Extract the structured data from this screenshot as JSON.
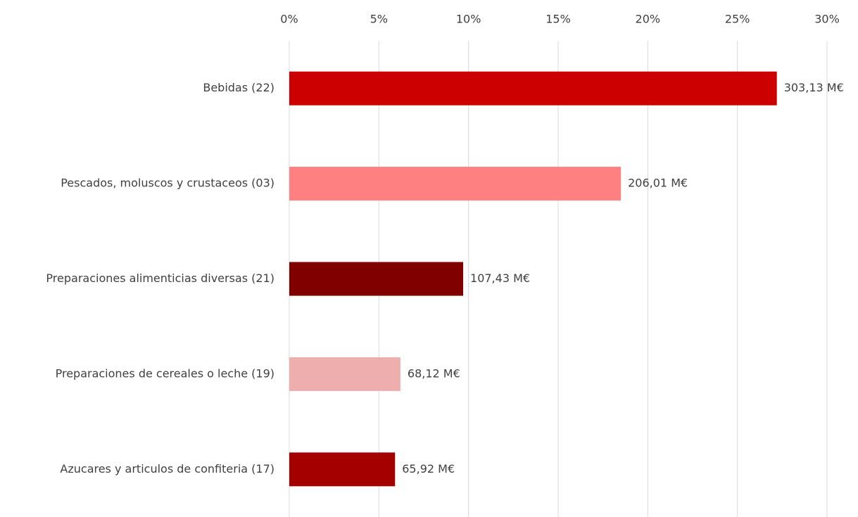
{
  "chart_data": {
    "type": "bar",
    "orientation": "horizontal",
    "categories": [
      "Bebidas (22)",
      "Pescados, moluscos y crustaceos (03)",
      "Preparaciones alimenticias diversas (21)",
      "Preparaciones de cereales o leche (19)",
      "Azucares y articulos de confiteria (17)"
    ],
    "values": [
      27.2,
      18.5,
      9.7,
      6.2,
      5.9
    ],
    "bar_labels": [
      "303,13 M€",
      "206,01 M€",
      "107,43 M€",
      "68,12 M€",
      "65,92 M€"
    ],
    "colors": [
      "#cc0000",
      "#ff8080",
      "#800000",
      "#efaeae",
      "#a50000"
    ],
    "xlim": [
      0,
      30
    ],
    "xticks": [
      {
        "value": 0,
        "label": "0%"
      },
      {
        "value": 5,
        "label": "5%"
      },
      {
        "value": 10,
        "label": "10%"
      },
      {
        "value": 15,
        "label": "15%"
      },
      {
        "value": 20,
        "label": "20%"
      },
      {
        "value": 25,
        "label": "25%"
      },
      {
        "value": 30,
        "label": "30%"
      }
    ],
    "grid": true,
    "xaxis_position": "top"
  }
}
